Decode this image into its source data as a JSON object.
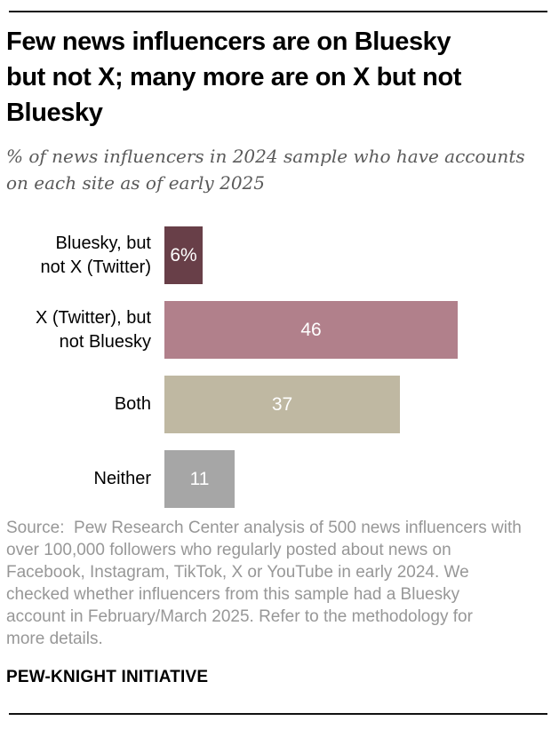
{
  "header": {
    "title_lines": [
      "Few news influencers are on Bluesky",
      "but not X; many more are on X but not",
      "Bluesky"
    ],
    "subtitle_lines": [
      "% of news influencers in 2024 sample who have accounts",
      "on each site as of early 2025"
    ]
  },
  "chart_data": {
    "type": "bar",
    "orientation": "horizontal",
    "title": "Few news influencers are on Bluesky but not X; many more are on X but not Bluesky",
    "subtitle": "% of news influencers in 2024 sample who have accounts on each site as of early 2025",
    "categories": [
      "Bluesky, but\nnot X (Twitter)",
      "X (Twitter), but\nnot Bluesky",
      "Both",
      "Neither"
    ],
    "values": [
      6,
      46,
      37,
      11
    ],
    "value_labels": [
      "6%",
      "46",
      "37",
      "11"
    ],
    "bar_colors": [
      "#683f48",
      "#b1808b",
      "#bfb8a2",
      "#a6a6a6"
    ],
    "value_label_color": "#ffffff",
    "xlim": [
      0,
      46
    ],
    "grid": false,
    "legend": false
  },
  "footer": {
    "source_lines": [
      "Source:  Pew Research Center analysis of 500 news influencers with",
      "over 100,000 followers who regularly posted about news on",
      "Facebook, Instagram, TikTok, X or YouTube in early 2024. We",
      "checked whether influencers from this sample had a Bluesky",
      "account in February/March 2025. Refer to the methodology for",
      "more details."
    ],
    "attribution": "PEW-KNIGHT INITIATIVE"
  }
}
